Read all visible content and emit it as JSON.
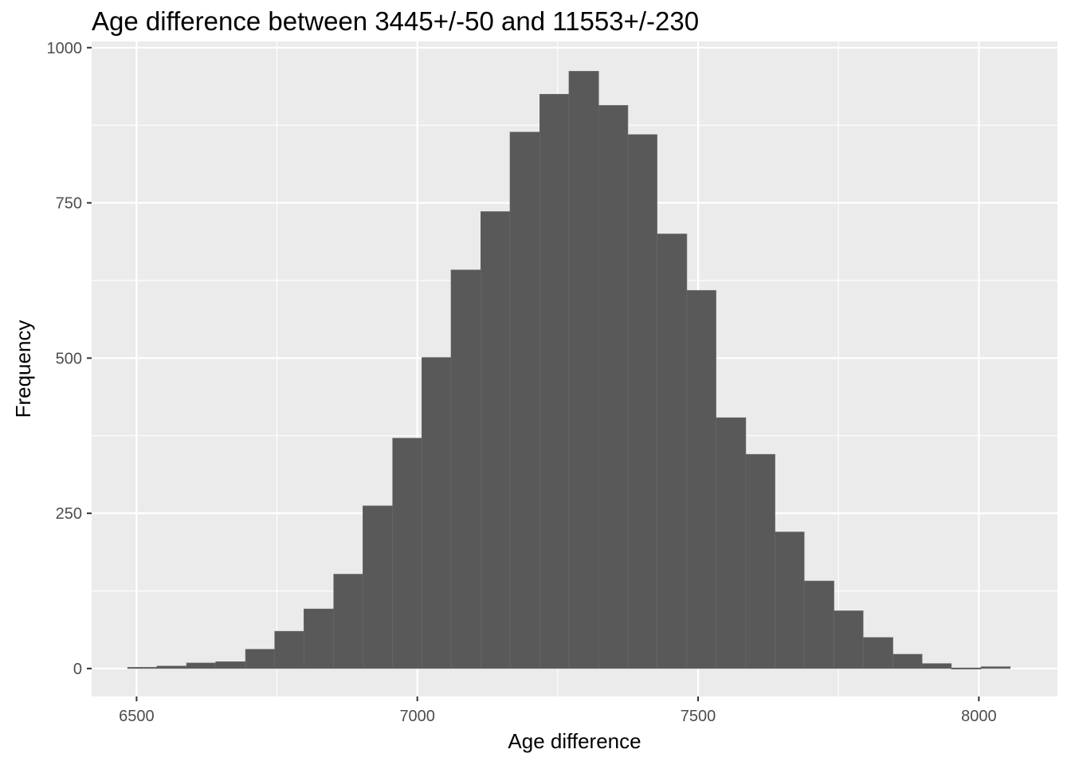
{
  "chart_data": {
    "type": "bar",
    "title": "Age difference between 3445+/-50 and 11553+/-230",
    "xlabel": "Age difference",
    "ylabel": "Frequency",
    "xlim": [
      6420,
      8140
    ],
    "ylim": [
      -45,
      1010
    ],
    "x_ticks": [
      6500,
      7000,
      7500,
      8000
    ],
    "y_ticks": [
      0,
      250,
      500,
      750,
      1000
    ],
    "grid": true,
    "bar_fill": "#595959",
    "bar_edge": "#6a6a6a",
    "panel_bg": "#ebebeb",
    "grid_color": "#ffffff",
    "bins": [
      {
        "x0": 6484,
        "x1": 6536,
        "count": 2
      },
      {
        "x0": 6536,
        "x1": 6589,
        "count": 4
      },
      {
        "x0": 6589,
        "x1": 6641,
        "count": 9
      },
      {
        "x0": 6641,
        "x1": 6694,
        "count": 11
      },
      {
        "x0": 6694,
        "x1": 6746,
        "count": 31
      },
      {
        "x0": 6746,
        "x1": 6798,
        "count": 60
      },
      {
        "x0": 6798,
        "x1": 6851,
        "count": 96
      },
      {
        "x0": 6851,
        "x1": 6903,
        "count": 152
      },
      {
        "x0": 6903,
        "x1": 6956,
        "count": 262
      },
      {
        "x0": 6956,
        "x1": 7008,
        "count": 371
      },
      {
        "x0": 7008,
        "x1": 7060,
        "count": 501
      },
      {
        "x0": 7060,
        "x1": 7113,
        "count": 642
      },
      {
        "x0": 7113,
        "x1": 7165,
        "count": 736
      },
      {
        "x0": 7165,
        "x1": 7218,
        "count": 864
      },
      {
        "x0": 7218,
        "x1": 7270,
        "count": 925
      },
      {
        "x0": 7270,
        "x1": 7323,
        "count": 962
      },
      {
        "x0": 7323,
        "x1": 7375,
        "count": 907
      },
      {
        "x0": 7375,
        "x1": 7427,
        "count": 860
      },
      {
        "x0": 7427,
        "x1": 7480,
        "count": 700
      },
      {
        "x0": 7480,
        "x1": 7532,
        "count": 609
      },
      {
        "x0": 7532,
        "x1": 7585,
        "count": 404
      },
      {
        "x0": 7585,
        "x1": 7637,
        "count": 345
      },
      {
        "x0": 7637,
        "x1": 7689,
        "count": 220
      },
      {
        "x0": 7689,
        "x1": 7742,
        "count": 141
      },
      {
        "x0": 7742,
        "x1": 7794,
        "count": 93
      },
      {
        "x0": 7794,
        "x1": 7847,
        "count": 50
      },
      {
        "x0": 7847,
        "x1": 7899,
        "count": 23
      },
      {
        "x0": 7899,
        "x1": 7951,
        "count": 8
      },
      {
        "x0": 7951,
        "x1": 8004,
        "count": 1
      },
      {
        "x0": 8004,
        "x1": 8056,
        "count": 3
      }
    ]
  }
}
